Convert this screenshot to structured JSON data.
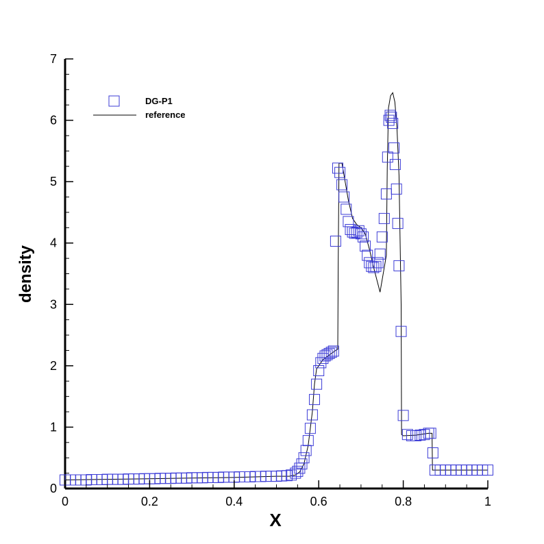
{
  "chart_data": {
    "type": "scatter",
    "title": "",
    "xlabel": "X",
    "ylabel": "density",
    "xlim": [
      0,
      1
    ],
    "ylim": [
      0,
      7
    ],
    "x_ticks": [
      "0",
      "0.2",
      "0.4",
      "0.6",
      "0.8",
      "1"
    ],
    "y_ticks": [
      "0",
      "1",
      "2",
      "3",
      "4",
      "5",
      "6",
      "7"
    ],
    "grid": false,
    "legend_position": "top-left",
    "colors": {
      "markers": "#3b3bd6",
      "reference": "#000000",
      "axes": "#000000"
    },
    "series": [
      {
        "name": "DG-P1",
        "kind": "markers",
        "marker": "square",
        "x": [
          0.0,
          0.0125,
          0.025,
          0.0375,
          0.05,
          0.0625,
          0.075,
          0.0875,
          0.1,
          0.1125,
          0.125,
          0.1375,
          0.15,
          0.1625,
          0.175,
          0.1875,
          0.2,
          0.2125,
          0.225,
          0.2375,
          0.25,
          0.2625,
          0.275,
          0.2875,
          0.3,
          0.3125,
          0.325,
          0.3375,
          0.35,
          0.3625,
          0.375,
          0.3875,
          0.4,
          0.4125,
          0.425,
          0.4375,
          0.45,
          0.4625,
          0.475,
          0.4875,
          0.5,
          0.5125,
          0.525,
          0.535,
          0.545,
          0.55,
          0.555,
          0.56,
          0.565,
          0.57,
          0.575,
          0.58,
          0.585,
          0.59,
          0.595,
          0.6,
          0.605,
          0.61,
          0.615,
          0.62,
          0.625,
          0.63,
          0.635,
          0.64,
          0.645,
          0.65,
          0.655,
          0.66,
          0.665,
          0.67,
          0.675,
          0.68,
          0.685,
          0.69,
          0.695,
          0.7,
          0.705,
          0.71,
          0.715,
          0.72,
          0.725,
          0.73,
          0.735,
          0.74,
          0.745,
          0.75,
          0.755,
          0.76,
          0.763,
          0.766,
          0.769,
          0.772,
          0.775,
          0.778,
          0.781,
          0.784,
          0.787,
          0.79,
          0.795,
          0.8,
          0.81,
          0.82,
          0.83,
          0.84,
          0.85,
          0.86,
          0.865,
          0.87,
          0.875,
          0.8875,
          0.9,
          0.9125,
          0.925,
          0.9375,
          0.95,
          0.9625,
          0.975,
          0.9875,
          1.0
        ],
        "y": [
          0.14,
          0.14,
          0.14,
          0.14,
          0.14,
          0.145,
          0.145,
          0.145,
          0.15,
          0.15,
          0.15,
          0.15,
          0.155,
          0.155,
          0.155,
          0.16,
          0.16,
          0.16,
          0.165,
          0.165,
          0.165,
          0.17,
          0.17,
          0.17,
          0.175,
          0.175,
          0.175,
          0.18,
          0.18,
          0.18,
          0.185,
          0.185,
          0.185,
          0.19,
          0.19,
          0.19,
          0.195,
          0.195,
          0.2,
          0.2,
          0.2,
          0.205,
          0.21,
          0.22,
          0.25,
          0.28,
          0.33,
          0.4,
          0.5,
          0.62,
          0.78,
          0.98,
          1.2,
          1.45,
          1.7,
          1.92,
          2.05,
          2.12,
          2.16,
          2.18,
          2.2,
          2.22,
          2.24,
          4.03,
          5.22,
          5.15,
          4.95,
          4.75,
          4.55,
          4.35,
          4.22,
          4.18,
          4.16,
          4.17,
          4.2,
          4.15,
          4.1,
          3.95,
          3.8,
          3.68,
          3.62,
          3.6,
          3.62,
          3.68,
          3.82,
          4.1,
          4.4,
          4.8,
          5.4,
          6.0,
          6.08,
          6.05,
          5.95,
          5.55,
          5.28,
          4.88,
          4.32,
          3.63,
          2.56,
          1.19,
          0.88,
          0.86,
          0.86,
          0.87,
          0.88,
          0.9,
          0.9,
          0.58,
          0.3,
          0.3,
          0.3,
          0.3,
          0.3,
          0.3,
          0.3,
          0.3,
          0.3,
          0.3,
          0.3
        ]
      },
      {
        "name": "reference",
        "kind": "line",
        "x": [
          0.0,
          0.1,
          0.2,
          0.3,
          0.4,
          0.45,
          0.5,
          0.53,
          0.545,
          0.555,
          0.565,
          0.575,
          0.585,
          0.59,
          0.595,
          0.6,
          0.61,
          0.62,
          0.63,
          0.64,
          0.645,
          0.646,
          0.648,
          0.655,
          0.66,
          0.67,
          0.68,
          0.69,
          0.7,
          0.71,
          0.72,
          0.73,
          0.745,
          0.76,
          0.762,
          0.765,
          0.77,
          0.775,
          0.78,
          0.785,
          0.79,
          0.795,
          0.796,
          0.8,
          0.83,
          0.86,
          0.868,
          0.869,
          0.9,
          0.95,
          1.0
        ],
        "y": [
          0.14,
          0.15,
          0.16,
          0.17,
          0.18,
          0.19,
          0.2,
          0.2,
          0.22,
          0.27,
          0.4,
          0.7,
          1.25,
          1.7,
          1.95,
          2.0,
          2.1,
          2.15,
          2.2,
          2.25,
          2.27,
          3.6,
          5.3,
          5.3,
          5.1,
          4.7,
          4.4,
          4.3,
          4.25,
          4.15,
          3.9,
          3.6,
          3.2,
          3.8,
          5.2,
          6.2,
          6.4,
          6.45,
          6.3,
          5.9,
          5.1,
          3.0,
          0.88,
          0.86,
          0.87,
          0.9,
          0.9,
          0.3,
          0.3,
          0.3,
          0.3
        ]
      }
    ]
  }
}
